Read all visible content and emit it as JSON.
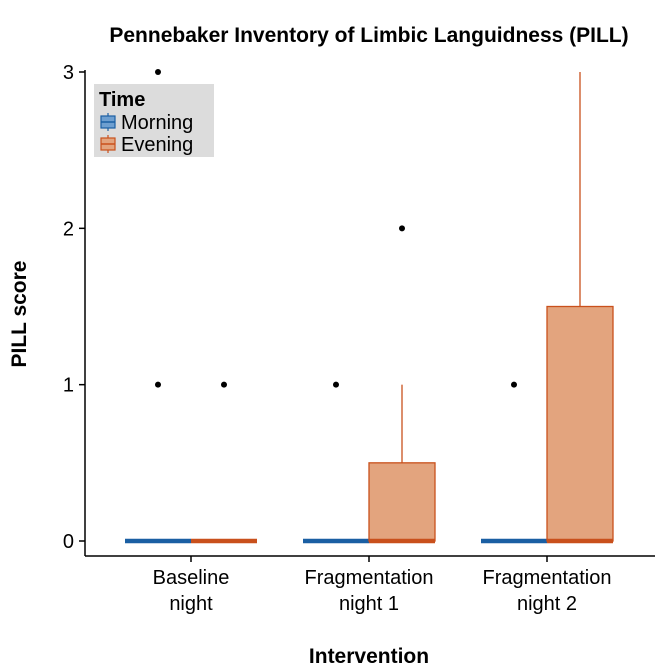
{
  "chart_data": {
    "type": "box",
    "title": "Pennebaker Inventory of Limbic Languidness (PILL)",
    "xlabel": "Intervention",
    "ylabel": "PILL score",
    "ylim": [
      -0.1,
      3
    ],
    "yticks": [
      0,
      1,
      2,
      3
    ],
    "categories": [
      [
        "Baseline",
        "night"
      ],
      [
        "Fragmentation",
        "night 1"
      ],
      [
        "Fragmentation",
        "night 2"
      ]
    ],
    "legend": {
      "title": "Time",
      "placement": "top-left",
      "entries": [
        "Morning",
        "Evening"
      ]
    },
    "series": [
      {
        "name": "Morning",
        "color": "#1a5fa3",
        "fill": "#6e9fd0",
        "boxes": [
          {
            "q1": 0,
            "median": 0,
            "q3": 0,
            "whisker_low": 0,
            "whisker_high": 0,
            "outliers": [
              1,
              3
            ]
          },
          {
            "q1": 0,
            "median": 0,
            "q3": 0,
            "whisker_low": 0,
            "whisker_high": 0,
            "outliers": [
              1
            ]
          },
          {
            "q1": 0,
            "median": 0,
            "q3": 0,
            "whisker_low": 0,
            "whisker_high": 0,
            "outliers": [
              1
            ]
          }
        ]
      },
      {
        "name": "Evening",
        "color": "#c9501c",
        "fill": "#e3a47e",
        "boxes": [
          {
            "q1": 0,
            "median": 0,
            "q3": 0,
            "whisker_low": 0,
            "whisker_high": 0,
            "outliers": [
              1
            ]
          },
          {
            "q1": 0,
            "median": 0,
            "q3": 0.5,
            "whisker_low": 0,
            "whisker_high": 1,
            "outliers": [
              2
            ]
          },
          {
            "q1": 0,
            "median": 0,
            "q3": 1.5,
            "whisker_low": 0,
            "whisker_high": 3,
            "outliers": []
          }
        ]
      }
    ]
  }
}
